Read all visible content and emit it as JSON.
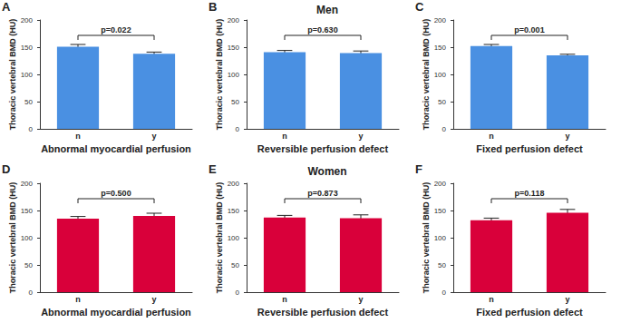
{
  "chart_data": [
    {
      "type": "bar",
      "panel_label": "A",
      "categories": [
        "n",
        "y"
      ],
      "values": [
        151,
        138
      ],
      "errors": [
        4,
        3
      ],
      "color": "#4a90e2",
      "xlabel": "Abnormal myocardial perfusion",
      "ylabel": "Thoracic vertebral BMD (HU)",
      "annotation": "p=0.022",
      "ylim": [
        0,
        200
      ],
      "yticks": [
        0,
        50,
        100,
        150,
        200
      ],
      "grid": false
    },
    {
      "type": "bar",
      "panel_label": "B",
      "title": "Men",
      "categories": [
        "n",
        "y"
      ],
      "values": [
        141,
        139
      ],
      "errors": [
        3,
        4
      ],
      "color": "#4a90e2",
      "xlabel": "Reversible perfusion defect",
      "ylabel": "Thoracic vertebral BMD (HU)",
      "annotation": "p=0.630",
      "ylim": [
        0,
        200
      ],
      "yticks": [
        0,
        50,
        100,
        150,
        200
      ],
      "grid": false
    },
    {
      "type": "bar",
      "panel_label": "C",
      "categories": [
        "n",
        "y"
      ],
      "values": [
        152,
        135
      ],
      "errors": [
        3,
        2
      ],
      "color": "#4a90e2",
      "xlabel": "Fixed perfusion defect",
      "ylabel": "Thoracic vertebral BMD (HU)",
      "annotation": "p=0.001",
      "ylim": [
        0,
        200
      ],
      "yticks": [
        0,
        50,
        100,
        150,
        200
      ],
      "grid": false
    },
    {
      "type": "bar",
      "panel_label": "D",
      "categories": [
        "n",
        "y"
      ],
      "values": [
        135,
        140
      ],
      "errors": [
        4,
        5
      ],
      "color": "#d9003a",
      "xlabel": "Abnormal myocardial perfusion",
      "ylabel": "Thoracic vertebral BMD (HU)",
      "annotation": "p=0.500",
      "ylim": [
        0,
        200
      ],
      "yticks": [
        0,
        50,
        100,
        150,
        200
      ],
      "grid": false
    },
    {
      "type": "bar",
      "panel_label": "E",
      "title": "Women",
      "categories": [
        "n",
        "y"
      ],
      "values": [
        137,
        136
      ],
      "errors": [
        4,
        6
      ],
      "color": "#d9003a",
      "xlabel": "Reversible perfusion defect",
      "ylabel": "Thoracic vertebral BMD (HU)",
      "annotation": "p=0.873",
      "ylim": [
        0,
        200
      ],
      "yticks": [
        0,
        50,
        100,
        150,
        200
      ],
      "grid": false
    },
    {
      "type": "bar",
      "panel_label": "F",
      "categories": [
        "n",
        "y"
      ],
      "values": [
        132,
        146
      ],
      "errors": [
        4,
        6
      ],
      "color": "#d9003a",
      "xlabel": "Fixed perfusion defect",
      "ylabel": "Thoracic vertebral BMD (HU)",
      "annotation": "p=0.118",
      "ylim": [
        0,
        200
      ],
      "yticks": [
        0,
        50,
        100,
        150,
        200
      ],
      "grid": false
    }
  ]
}
